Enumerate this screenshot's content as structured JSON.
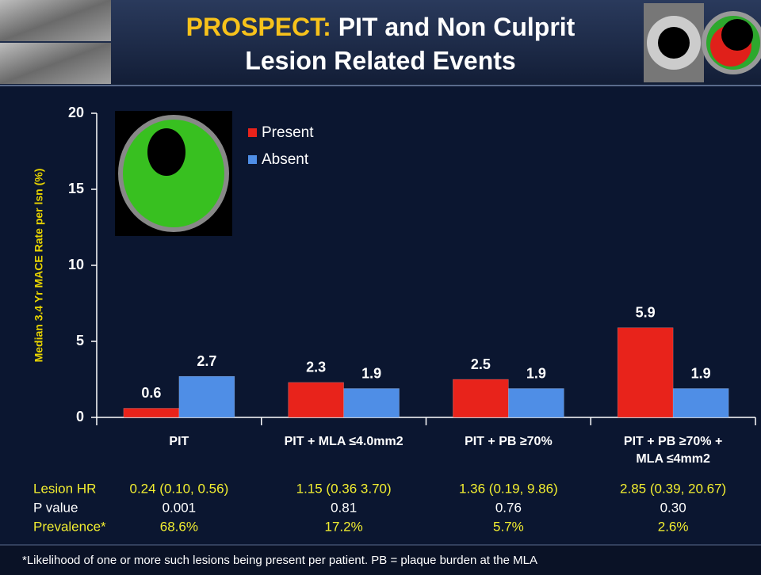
{
  "chart_data": {
    "type": "bar",
    "title_prefix": "PROSPECT:",
    "title_lines": [
      "PIT and Non Culprit",
      "Lesion Related Events"
    ],
    "ylabel": "Median 3.4 Yr MACE Rate per lsn (%)",
    "categories": [
      [
        "PIT"
      ],
      [
        "PIT + MLA ≤4.0mm2"
      ],
      [
        "PIT + PB ≥70%"
      ],
      [
        "PIT + PB ≥70% +",
        "MLA ≤4mm2"
      ]
    ],
    "series": [
      {
        "name": "Present",
        "color": "#e8231b",
        "values": [
          0.6,
          2.3,
          2.5,
          5.9
        ]
      },
      {
        "name": "Absent",
        "color": "#4f8ee6",
        "values": [
          2.7,
          1.9,
          1.9,
          1.9
        ]
      }
    ],
    "ylim": [
      0,
      20
    ],
    "yticks": [
      0,
      5,
      10,
      15,
      20
    ],
    "grid": false,
    "legend": "top-left"
  },
  "stats": {
    "rows": [
      {
        "label": "Lesion HR",
        "color": "#f2ee30",
        "values": [
          "0.24 (0.10, 0.56)",
          "1.15 (0.36 3.70)",
          "1.36 (0.19, 9.86)",
          "2.85 (0.39, 20.67)"
        ]
      },
      {
        "label": "P value",
        "color": "#ffffff",
        "values": [
          "0.001",
          "0.81",
          "0.76",
          "0.30"
        ]
      },
      {
        "label": "Prevalence*",
        "color": "#f2ee30",
        "values": [
          "68.6%",
          "17.2%",
          "5.7%",
          "2.6%"
        ]
      }
    ]
  },
  "footnote": "*Likelihood of one or more such lesions being present per patient. PB = plaque burden at the MLA"
}
